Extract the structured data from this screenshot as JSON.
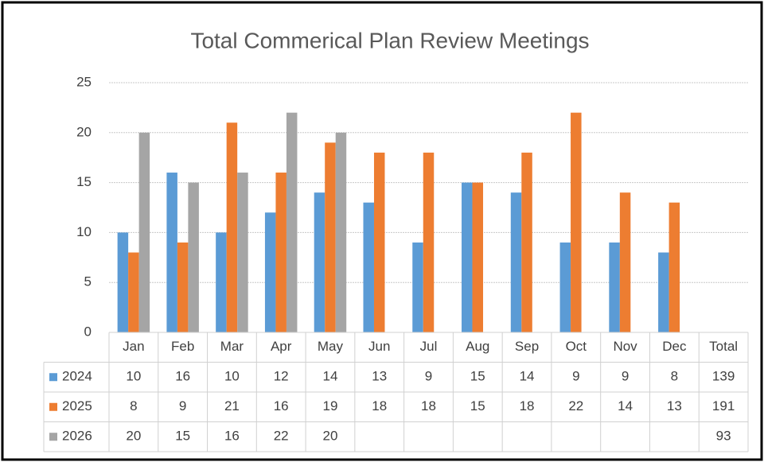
{
  "chart_data": {
    "type": "bar",
    "title": "Total Commerical Plan Review Meetings",
    "categories": [
      "Jan",
      "Feb",
      "Mar",
      "Apr",
      "May",
      "Jun",
      "Jul",
      "Aug",
      "Sep",
      "Oct",
      "Nov",
      "Dec"
    ],
    "total_label": "Total",
    "series": [
      {
        "name": "2024",
        "color": "#5b9bd5",
        "values": [
          10,
          16,
          10,
          12,
          14,
          13,
          9,
          15,
          14,
          9,
          9,
          8
        ],
        "total": 139
      },
      {
        "name": "2025",
        "color": "#ed7d31",
        "values": [
          8,
          9,
          21,
          16,
          19,
          18,
          18,
          15,
          18,
          22,
          14,
          13
        ],
        "total": 191
      },
      {
        "name": "2026",
        "color": "#a5a5a5",
        "values": [
          20,
          15,
          16,
          22,
          20,
          null,
          null,
          null,
          null,
          null,
          null,
          null
        ],
        "total": 93
      }
    ],
    "ylim": [
      0,
      25
    ],
    "yticks": [
      0,
      5,
      10,
      15,
      20,
      25
    ],
    "grid": true
  }
}
